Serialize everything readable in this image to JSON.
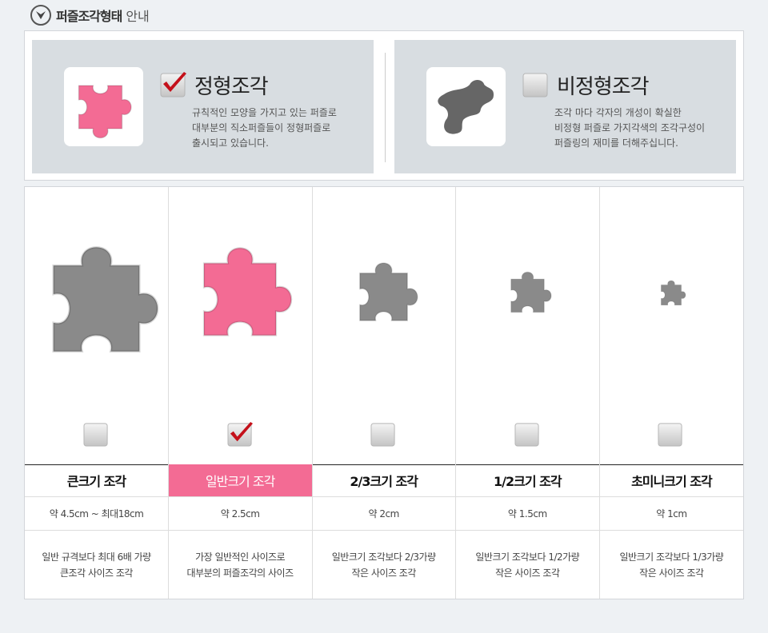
{
  "header": {
    "title_bold": "퍼즐조각형태",
    "title_normal": "안내",
    "icon": "chevron-down-circle-icon"
  },
  "types": [
    {
      "title": "정형조각",
      "checked": true,
      "color": "#f36b94",
      "lines": [
        "규칙적인 모양을 가지고 있는 퍼즐로",
        "대부분의 직소퍼즐들이 정형퍼즐로",
        "출시되고 있습니다."
      ]
    },
    {
      "title": "비정형조각",
      "checked": false,
      "color": "#6a6a6a",
      "lines": [
        "조각 마다 각자의 개성이 확실한",
        "비정형 퍼즐로 가지각색의 조각구성이",
        "퍼즐링의 재미를 더해주십니다."
      ]
    }
  ],
  "sizes": [
    {
      "name": "큰크기 조각",
      "size": "약 4.5cm ~ 최대18cm",
      "desc": [
        "일반 규격보다 최대 6배 가량",
        "큰조각 사이즈 조각"
      ],
      "checked": false,
      "color": "#8a8a8a"
    },
    {
      "name": "일반크기 조각",
      "size": "약 2.5cm",
      "desc": [
        "가장 일반적인 사이즈로",
        "대부분의 퍼즐조각의 사이즈"
      ],
      "checked": true,
      "color": "#f36b94"
    },
    {
      "name": "2/3크기 조각",
      "size": "약 2cm",
      "desc": [
        "일반크기 조각보다 2/3가량",
        "작은 사이즈 조각"
      ],
      "checked": false,
      "color": "#8a8a8a"
    },
    {
      "name": "1/2크기 조각",
      "size": "약 1.5cm",
      "desc": [
        "일반크기 조각보다 1/2가량",
        "작은 사이즈 조각"
      ],
      "checked": false,
      "color": "#8a8a8a"
    },
    {
      "name": "초미니크기 조각",
      "size": "약 1cm",
      "desc": [
        "일반크기 조각보다 1/3가량",
        "작은 사이즈 조각"
      ],
      "checked": false,
      "color": "#8a8a8a"
    }
  ],
  "accent": "#f36b94"
}
